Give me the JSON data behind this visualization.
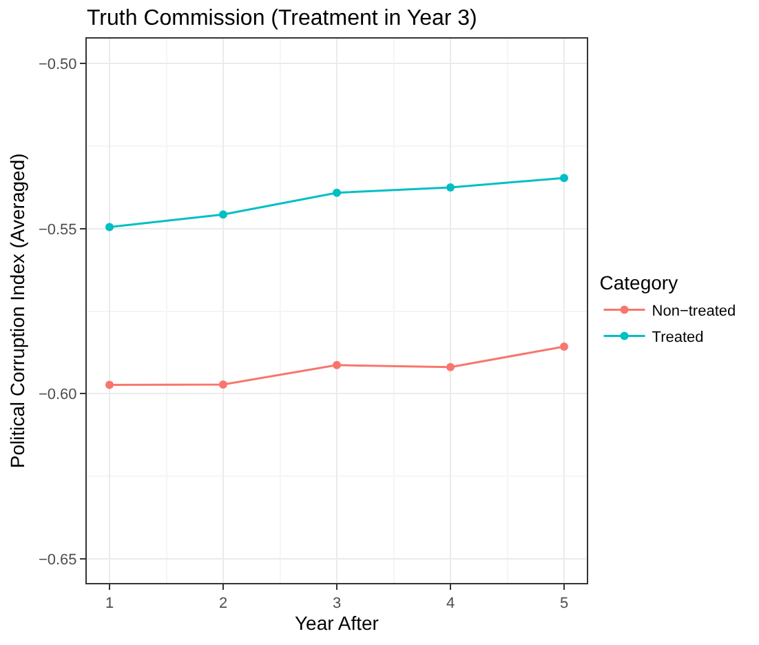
{
  "chart_data": {
    "type": "line",
    "title": "Truth Commission (Treatment in Year 3)",
    "xlabel": "Year After",
    "ylabel": "Political Corruption Index (Averaged)",
    "legend_title": "Category",
    "x": [
      1,
      2,
      3,
      4,
      5
    ],
    "series": [
      {
        "name": "Non−treated",
        "color": "#f8766d",
        "values": [
          -0.5973,
          -0.5972,
          -0.5913,
          -0.5919,
          -0.5857
        ]
      },
      {
        "name": "Treated",
        "color": "#00bfc4",
        "values": [
          -0.5495,
          -0.5457,
          -0.5391,
          -0.5375,
          -0.5346
        ]
      }
    ],
    "xlim": [
      0.8,
      5.2
    ],
    "xticks": [
      1,
      2,
      3,
      4,
      5
    ],
    "ylim": [
      -0.6573,
      -0.4924
    ],
    "yticks": [
      {
        "value": -0.5,
        "label": "−0.50"
      },
      {
        "value": -0.55,
        "label": "−0.55"
      },
      {
        "value": -0.6,
        "label": "−0.60"
      },
      {
        "value": -0.65,
        "label": "−0.65"
      }
    ],
    "grid": true,
    "legend": "right",
    "marker": "circle",
    "line_style": "solid"
  }
}
